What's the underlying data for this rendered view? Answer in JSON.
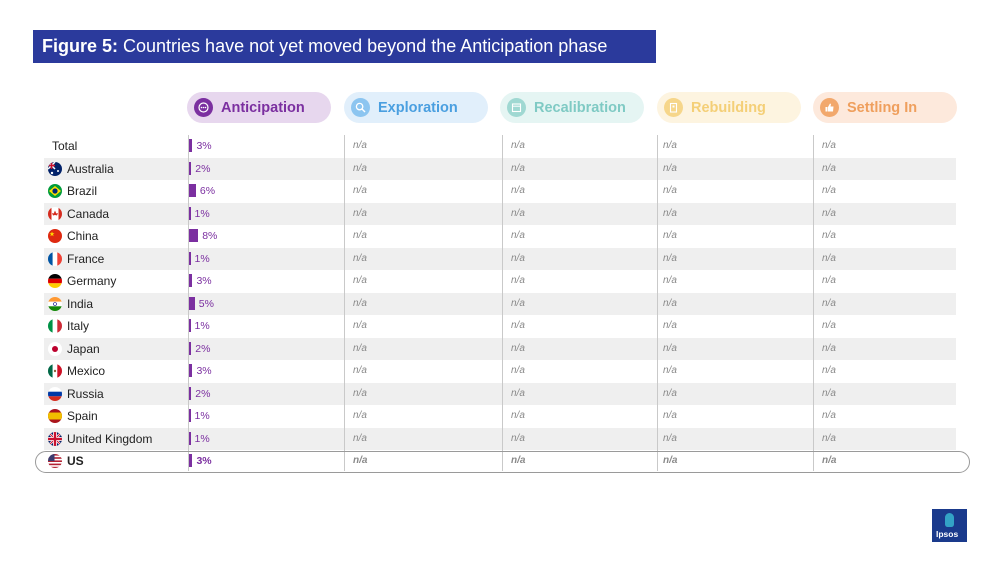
{
  "title": {
    "figure_label": "Figure 5:",
    "text": " Countries have not yet moved beyond the Anticipation phase"
  },
  "phases": [
    {
      "label": "Anticipation",
      "icon": "chat-bubble-icon",
      "text_color": "#7b2fa0",
      "bg": "#e7d7ee",
      "icon_bg": "#7b2fa0"
    },
    {
      "label": "Exploration",
      "icon": "magnifier-icon",
      "text_color": "#4a9fe0",
      "bg": "#e1effb",
      "icon_bg": "#8cc5f0"
    },
    {
      "label": "Recalibration",
      "icon": "calendar-icon",
      "text_color": "#7fcac4",
      "bg": "#e5f5f3",
      "icon_bg": "#9fd8d2"
    },
    {
      "label": "Rebuilding",
      "icon": "building-icon",
      "text_color": "#f4cf77",
      "bg": "#fdf4e0",
      "icon_bg": "#f6d68a"
    },
    {
      "label": "Settling In",
      "icon": "thumbs-up-icon",
      "text_color": "#ef9f5d",
      "bg": "#fde9dc",
      "icon_bg": "#f2a86c"
    }
  ],
  "na_label": "n/a",
  "chart_data": {
    "type": "table",
    "columns": [
      "Anticipation",
      "Exploration",
      "Recalibration",
      "Rebuilding",
      "Settling In"
    ],
    "rows": [
      {
        "country": "Total",
        "flag": "",
        "anticipation": 3,
        "label": "3%"
      },
      {
        "country": "Australia",
        "flag": "australia-flag-icon",
        "anticipation": 2,
        "label": "2%"
      },
      {
        "country": "Brazil",
        "flag": "brazil-flag-icon",
        "anticipation": 6,
        "label": "6%"
      },
      {
        "country": "Canada",
        "flag": "canada-flag-icon",
        "anticipation": 1,
        "label": "1%"
      },
      {
        "country": "China",
        "flag": "china-flag-icon",
        "anticipation": 8,
        "label": "8%"
      },
      {
        "country": "France",
        "flag": "france-flag-icon",
        "anticipation": 1,
        "label": "1%"
      },
      {
        "country": "Germany",
        "flag": "germany-flag-icon",
        "anticipation": 3,
        "label": "3%"
      },
      {
        "country": "India",
        "flag": "india-flag-icon",
        "anticipation": 5,
        "label": "5%"
      },
      {
        "country": "Italy",
        "flag": "italy-flag-icon",
        "anticipation": 1,
        "label": "1%"
      },
      {
        "country": "Japan",
        "flag": "japan-flag-icon",
        "anticipation": 2,
        "label": "2%"
      },
      {
        "country": "Mexico",
        "flag": "mexico-flag-icon",
        "anticipation": 3,
        "label": "3%"
      },
      {
        "country": "Russia",
        "flag": "russia-flag-icon",
        "anticipation": 2,
        "label": "2%"
      },
      {
        "country": "Spain",
        "flag": "spain-flag-icon",
        "anticipation": 1,
        "label": "1%"
      },
      {
        "country": "United Kingdom",
        "flag": "uk-flag-icon",
        "anticipation": 1,
        "label": "1%"
      },
      {
        "country": "US",
        "flag": "us-flag-icon",
        "anticipation": 3,
        "label": "3%",
        "highlighted": true
      }
    ],
    "other_phases_value": "n/a"
  },
  "logo": {
    "text": "Ipsos"
  },
  "colors": {
    "title_bg": "#2b3a9c",
    "bar": "#7b2fa0",
    "stripe": "#efefef"
  }
}
